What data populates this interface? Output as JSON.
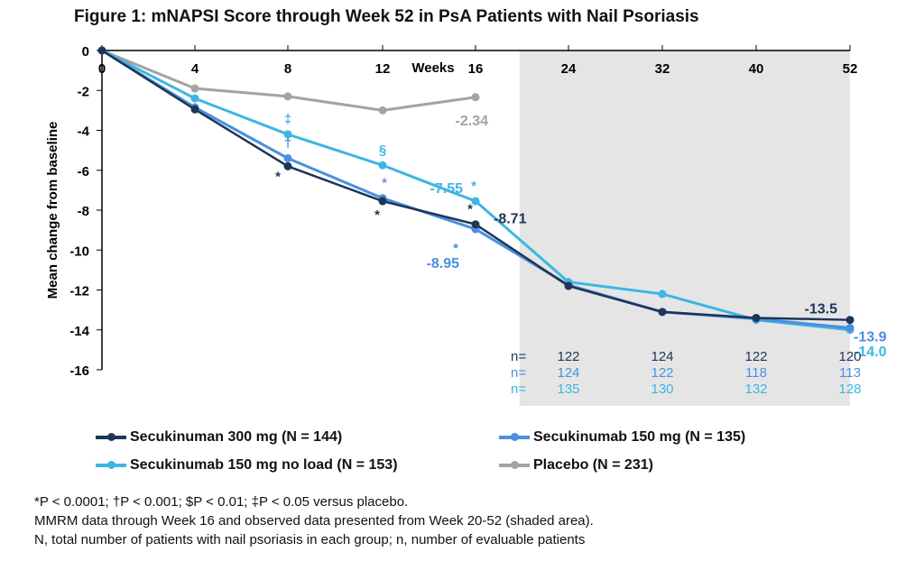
{
  "chart_data": {
    "type": "line",
    "title": "Figure 1: mNAPSI Score through Week 52 in PsA Patients with Nail Psoriasis",
    "xlabel": "Weeks",
    "ylabel": "Mean change from baseline",
    "x": [
      0,
      4,
      8,
      12,
      16,
      24,
      32,
      40,
      52
    ],
    "x_tick_labels": [
      "0",
      "4",
      "8",
      "12",
      "16",
      "24",
      "32",
      "40",
      "52"
    ],
    "ylim": [
      -16,
      0
    ],
    "y_ticks": [
      0,
      -2,
      -4,
      -6,
      -8,
      -10,
      -12,
      -14,
      -16
    ],
    "y_tick_labels": [
      "0",
      "-2",
      "-4",
      "-6",
      "-8",
      "-10",
      "-12",
      "-14",
      "-16"
    ],
    "shaded_region": {
      "from_week": 20,
      "to_week": 52,
      "note": "observed data"
    },
    "series": [
      {
        "name": "Secukinuman 300 mg (N = 144)",
        "color": "#1d3557",
        "values": [
          0,
          -2.95,
          -5.8,
          -7.55,
          -8.71,
          -11.8,
          -13.1,
          -13.4,
          -13.5
        ]
      },
      {
        "name": "Secukinumab 150 mg (N = 135)",
        "color": "#4a8fe0",
        "values": [
          0,
          -2.85,
          -5.4,
          -7.4,
          -8.95,
          -11.75,
          -13.1,
          -13.45,
          -13.9
        ]
      },
      {
        "name": "Secukinumab 150 mg no load (N = 153)",
        "color": "#3db6e2",
        "values": [
          0,
          -2.4,
          -4.2,
          -5.75,
          -7.55,
          -11.6,
          -12.2,
          -13.5,
          -14.0
        ]
      },
      {
        "name": "Placebo (N = 231)",
        "color": "#a3a3a3",
        "values": [
          0,
          -1.9,
          -2.3,
          -3.0,
          -2.34,
          null,
          null,
          null,
          null
        ]
      }
    ],
    "data_labels": [
      {
        "text": "-2.34",
        "series": 3,
        "week": 16,
        "color": "#a3a3a3"
      },
      {
        "text": "-7.55",
        "series": 2,
        "week": 16,
        "color": "#3db6e2"
      },
      {
        "text": "-8.71",
        "series": 0,
        "week": 16,
        "color": "#1d3557"
      },
      {
        "text": "-8.95",
        "series": 1,
        "week": 16,
        "color": "#4a8fe0"
      },
      {
        "text": "-13.5",
        "series": 0,
        "week": 52,
        "color": "#1d3557"
      },
      {
        "text": "-13.9",
        "series": 1,
        "week": 52,
        "color": "#4a8fe0"
      },
      {
        "text": "-14.0",
        "series": 2,
        "week": 52,
        "color": "#3db6e2"
      }
    ],
    "significance_marks": [
      {
        "text": "*",
        "week": 8,
        "series": 0,
        "color": "#1d3557"
      },
      {
        "text": "†",
        "week": 8,
        "series": 1,
        "color": "#4a8fe0"
      },
      {
        "text": "‡",
        "week": 8,
        "series": 2,
        "color": "#3db6e2"
      },
      {
        "text": "*",
        "week": 12,
        "series": 0,
        "color": "#1d3557"
      },
      {
        "text": "*",
        "week": 12,
        "series": 1,
        "color": "#7b8fe0"
      },
      {
        "text": "§",
        "week": 12,
        "series": 2,
        "color": "#3db6e2"
      },
      {
        "text": "*",
        "week": 16,
        "series": 0,
        "color": "#1d3557"
      },
      {
        "text": "*",
        "week": 16,
        "series": 1,
        "color": "#4a8fe0"
      },
      {
        "text": "*",
        "week": 16,
        "series": 2,
        "color": "#3db6e2"
      }
    ],
    "n_table": {
      "label": "n=",
      "weeks": [
        24,
        32,
        40,
        52
      ],
      "rows": [
        {
          "color": "#1d3557",
          "values": [
            "122",
            "124",
            "122",
            "120"
          ]
        },
        {
          "color": "#4a8fe0",
          "values": [
            "124",
            "122",
            "118",
            "113"
          ]
        },
        {
          "color": "#3db6e2",
          "values": [
            "135",
            "130",
            "132",
            "128"
          ]
        }
      ]
    },
    "legend": "bottom"
  },
  "footnotes": [
    "*P < 0.0001; †P < 0.001; $P < 0.01; ‡P < 0.05 versus placebo.",
    "MMRM data through Week 16 and observed data presented from Week 20-52 (shaded area).",
    "N, total number of patients with nail psoriasis in each group; n, number of evaluable patients"
  ]
}
